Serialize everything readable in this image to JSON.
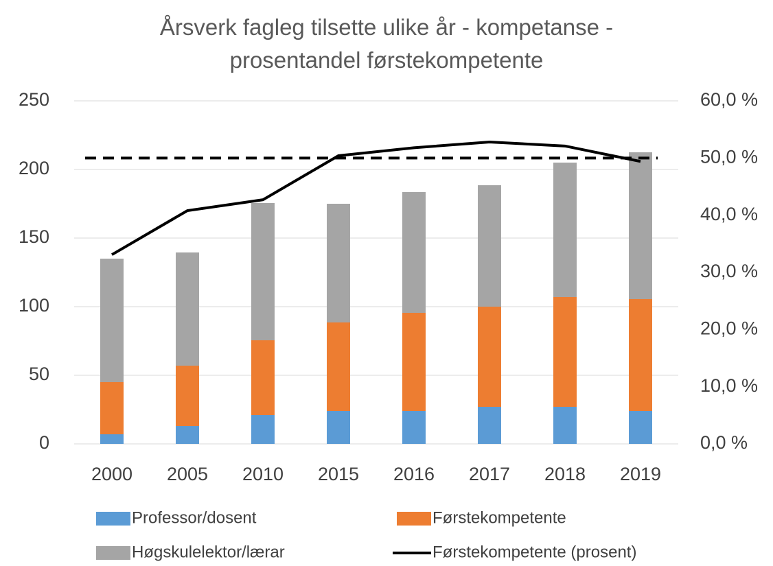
{
  "chart_data": {
    "type": "bar",
    "stacked": true,
    "title": "Årsverk fagleg tilsette ulike år - kompetanse - prosentandel førstekompetente",
    "categories": [
      "2000",
      "2005",
      "2010",
      "2015",
      "2016",
      "2017",
      "2018",
      "2019"
    ],
    "series": [
      {
        "name": "Professor/dosent",
        "color": "#5b9bd5",
        "type": "bar",
        "values": [
          7,
          13,
          21,
          24,
          24,
          27,
          27,
          24
        ]
      },
      {
        "name": "Førstekompetente",
        "color": "#ed7d31",
        "type": "bar",
        "values": [
          38,
          44,
          54.5,
          64.5,
          71.5,
          73,
          80,
          81.5
        ]
      },
      {
        "name": "Høgskulelektor/lærar",
        "color": "#a5a5a5",
        "type": "bar",
        "values": [
          90,
          82.5,
          100,
          86.5,
          88,
          88.5,
          98,
          107
        ]
      },
      {
        "name": "Førstekompetente (prosent)",
        "color": "#000000",
        "type": "line",
        "axis": "y2",
        "values": [
          33.1,
          40.8,
          42.7,
          50.4,
          51.8,
          52.8,
          52.1,
          49.4
        ]
      }
    ],
    "reference_line": {
      "value": 50,
      "axis": "y2",
      "color": "#000000",
      "dashed": true
    },
    "ylim": [
      0,
      250
    ],
    "yticks": [
      0,
      50,
      100,
      150,
      200,
      250
    ],
    "y2lim": [
      0,
      60
    ],
    "y2ticks": [
      {
        "value": 0,
        "label": "0,0 %"
      },
      {
        "value": 10,
        "label": "10,0 %"
      },
      {
        "value": 20,
        "label": "20,0 %"
      },
      {
        "value": 30,
        "label": "30,0 %"
      },
      {
        "value": 40,
        "label": "40,0 %"
      },
      {
        "value": 50,
        "label": "50,0 %"
      },
      {
        "value": 60,
        "label": "60,0 %"
      }
    ],
    "grid": true,
    "legend": "bottom"
  }
}
